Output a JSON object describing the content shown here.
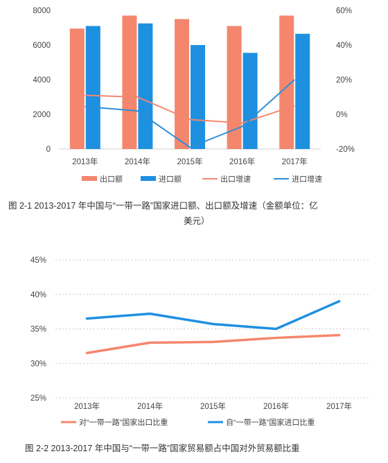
{
  "chart_data": [
    {
      "type": "bar",
      "categories": [
        "2013年",
        "2014年",
        "2015年",
        "2016年",
        "2017年"
      ],
      "series": [
        {
          "name": "出口额",
          "kind": "bar",
          "axis": "left",
          "values": [
            6950,
            7700,
            7500,
            7100,
            7700
          ],
          "color": "#F4866E"
        },
        {
          "name": "进口额",
          "kind": "bar",
          "axis": "left",
          "values": [
            7100,
            7250,
            6000,
            5550,
            6650
          ],
          "color": "#1E90E0"
        },
        {
          "name": "出口增速",
          "kind": "line",
          "axis": "right",
          "values": [
            11,
            10,
            -3,
            -5,
            5
          ],
          "color": "#F4866E"
        },
        {
          "name": "进口增速",
          "kind": "line",
          "axis": "right",
          "values": [
            4.5,
            2,
            -19,
            -7,
            20
          ],
          "color": "#2D8ED6"
        }
      ],
      "ylim": [
        0,
        8000
      ],
      "yticks": [
        "0",
        "2000",
        "4000",
        "6000",
        "8000"
      ],
      "y2lim": [
        -20,
        60
      ],
      "y2ticks": [
        "-20%",
        "0%",
        "20%",
        "40%",
        "60%"
      ],
      "legend_position": "bottom",
      "caption_line1": "图 2-1  2013-2017 年中国与“一带一路”国家进口额、出口额及增速（金额单位：亿",
      "caption_line2": "美元）"
    },
    {
      "type": "line",
      "categories": [
        "2013年",
        "2014年",
        "2015年",
        "2016年",
        "2017年"
      ],
      "series": [
        {
          "name": "对“一带一路”国家出口比重",
          "values": [
            31.5,
            33.0,
            33.1,
            33.7,
            34.1
          ],
          "color": "#F4866E"
        },
        {
          "name": "自“一带一路”国家进口比重",
          "values": [
            36.5,
            37.2,
            35.7,
            35.0,
            39.0
          ],
          "color": "#1E90E0"
        }
      ],
      "ylim": [
        25,
        45
      ],
      "yticks": [
        "25%",
        "30%",
        "35%",
        "40%",
        "45%"
      ],
      "grid": true,
      "legend_position": "bottom",
      "caption": "图 2-2  2013-2017 年中国与“一带一路”国家贸易额占中国对外贸易额比重"
    }
  ]
}
